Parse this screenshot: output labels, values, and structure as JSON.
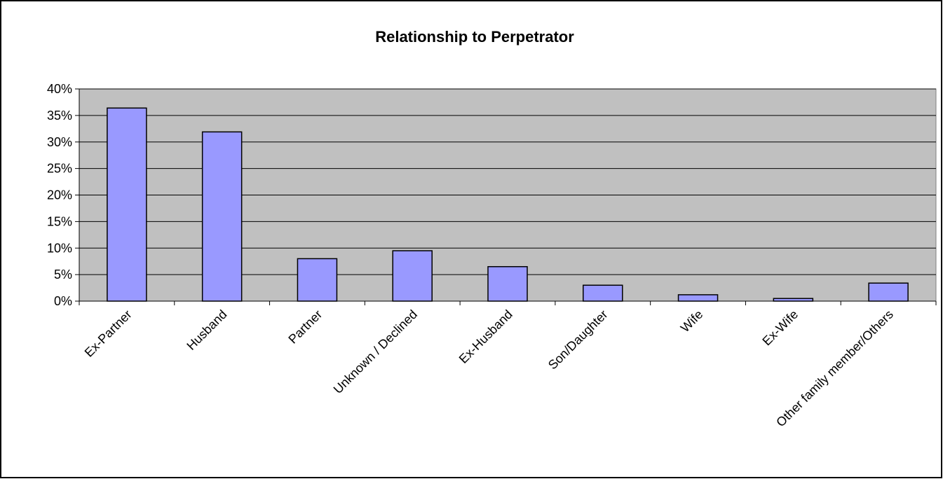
{
  "chart_data": {
    "type": "bar",
    "title": "Relationship to Perpetrator",
    "categories": [
      "Ex-Partner",
      "Husband",
      "Partner",
      "Unknown / Declined",
      "Ex-Husband",
      "Son/Daughter",
      "Wife",
      "Ex-Wife",
      "Other family member/Others"
    ],
    "values": [
      36.4,
      31.9,
      8,
      9.5,
      6.5,
      3,
      1.2,
      0.5,
      3.4
    ],
    "color": "#9999ff",
    "ylim": [
      0,
      40
    ],
    "yticks": [
      {
        "value": 0,
        "label": "0%"
      },
      {
        "value": 5,
        "label": "5%"
      },
      {
        "value": 10,
        "label": "10%"
      },
      {
        "value": 15,
        "label": "15%"
      },
      {
        "value": 20,
        "label": "20%"
      },
      {
        "value": 25,
        "label": "25%"
      },
      {
        "value": 30,
        "label": "30%"
      },
      {
        "value": 35,
        "label": "35%"
      },
      {
        "value": 40,
        "label": "40%"
      }
    ],
    "grid": true
  }
}
